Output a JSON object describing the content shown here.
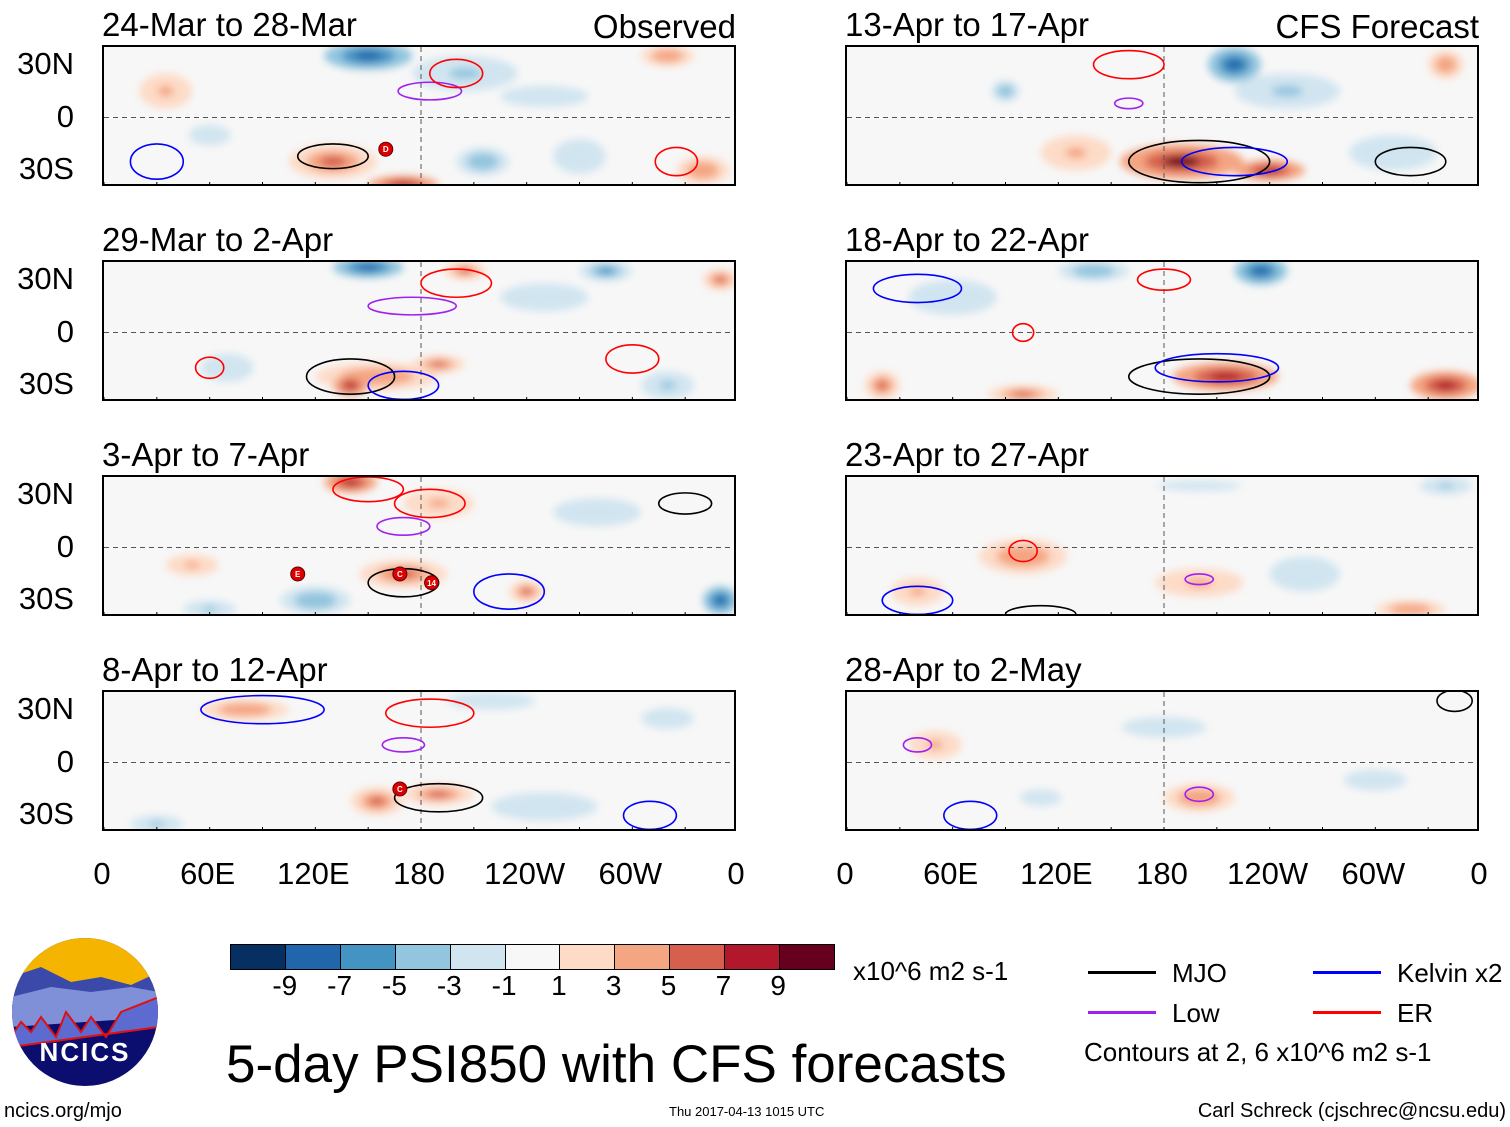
{
  "title": "5-day PSI850 with CFS forecasts",
  "units": "x10^6 m2 s-1",
  "contour_note": "Contours at 2, 6 x10^6 m2 s-1",
  "website": "ncics.org/mjo",
  "timestamp": "Thu 2017-04-13 1015 UTC",
  "author": "Carl Schreck (cjschrec@ncsu.edu)",
  "logo_text": "NCICS",
  "column_labels": {
    "observed": "Observed",
    "forecast": "CFS Forecast"
  },
  "y_ticks": [
    "30N",
    "0",
    "30S"
  ],
  "x_ticks": [
    "0",
    "60E",
    "120E",
    "180",
    "120W",
    "60W",
    "0"
  ],
  "colorbar": {
    "labels": [
      "-9",
      "-7",
      "-5",
      "-3",
      "-1",
      "1",
      "3",
      "5",
      "7",
      "9"
    ],
    "colors": [
      "#053061",
      "#2166ac",
      "#4393c3",
      "#92c5de",
      "#d1e5f0",
      "#f7f7f7",
      "#fddbc7",
      "#f4a582",
      "#d6604d",
      "#b2182b",
      "#67001f"
    ]
  },
  "legend": [
    {
      "label": "MJO",
      "color": "#000000"
    },
    {
      "label": "Kelvin x2",
      "color": "#0000ff"
    },
    {
      "label": "Low",
      "color": "#a020f0"
    },
    {
      "label": "ER",
      "color": "#ff0000"
    }
  ],
  "chart_data": {
    "type": "heatmap",
    "lon_range": [
      0,
      360
    ],
    "lat_range": [
      -40,
      40
    ],
    "panels": [
      {
        "title": "24-Mar to 28-Mar",
        "column": "observed",
        "features": [
          [
            150,
            35,
            -8,
            25,
            8
          ],
          [
            205,
            25,
            -4,
            30,
            10
          ],
          [
            130,
            -25,
            5,
            25,
            10
          ],
          [
            170,
            -38,
            7,
            20,
            5
          ],
          [
            215,
            -25,
            -5,
            15,
            8
          ],
          [
            60,
            -10,
            -2,
            20,
            10
          ],
          [
            320,
            35,
            4,
            15,
            6
          ],
          [
            270,
            -22,
            -3,
            15,
            10
          ],
          [
            340,
            -30,
            4,
            15,
            8
          ],
          [
            35,
            15,
            3,
            15,
            10
          ],
          [
            250,
            12,
            -3,
            25,
            6
          ]
        ],
        "contours": [
          [
            "MJO",
            130,
            -22,
            20,
            7
          ],
          [
            "Low",
            185,
            15,
            18,
            5
          ],
          [
            "ER",
            200,
            25,
            15,
            8
          ],
          [
            "Kelvin",
            30,
            -25,
            15,
            10
          ],
          [
            "ER",
            325,
            -25,
            12,
            8
          ]
        ],
        "storms": [
          [
            "D",
            160,
            -18
          ]
        ]
      },
      {
        "title": "29-Mar to 2-Apr",
        "column": "observed",
        "features": [
          [
            150,
            37,
            -8,
            20,
            6
          ],
          [
            205,
            35,
            6,
            12,
            5
          ],
          [
            285,
            35,
            -6,
            15,
            6
          ],
          [
            350,
            30,
            6,
            10,
            6
          ],
          [
            155,
            -25,
            4,
            35,
            8
          ],
          [
            140,
            -30,
            7,
            10,
            6
          ],
          [
            190,
            -18,
            5,
            15,
            5
          ],
          [
            320,
            -30,
            -4,
            15,
            8
          ],
          [
            70,
            -20,
            -3,
            15,
            8
          ],
          [
            250,
            20,
            -3,
            25,
            8
          ]
        ],
        "contours": [
          [
            "MJO",
            140,
            -25,
            25,
            10
          ],
          [
            "Low",
            175,
            15,
            25,
            5
          ],
          [
            "ER",
            200,
            28,
            20,
            8
          ],
          [
            "ER",
            60,
            -20,
            8,
            6
          ],
          [
            "Kelvin",
            170,
            -30,
            20,
            8
          ],
          [
            "ER",
            300,
            -15,
            15,
            8
          ]
        ],
        "storms": []
      },
      {
        "title": "3-Apr to 7-Apr",
        "column": "observed",
        "features": [
          [
            140,
            37,
            8,
            15,
            6
          ],
          [
            190,
            25,
            3,
            20,
            8
          ],
          [
            170,
            -15,
            5,
            25,
            8
          ],
          [
            240,
            -25,
            6,
            10,
            6
          ],
          [
            120,
            -30,
            -5,
            20,
            8
          ],
          [
            350,
            -30,
            -8,
            10,
            8
          ],
          [
            60,
            -35,
            -4,
            15,
            5
          ],
          [
            280,
            20,
            -3,
            25,
            8
          ],
          [
            50,
            -10,
            3,
            15,
            6
          ]
        ],
        "contours": [
          [
            "MJO",
            170,
            -20,
            20,
            8
          ],
          [
            "Low",
            170,
            12,
            15,
            5
          ],
          [
            "ER",
            185,
            25,
            20,
            8
          ],
          [
            "ER",
            150,
            33,
            20,
            7
          ],
          [
            "Kelvin",
            230,
            -25,
            20,
            10
          ],
          [
            "MJO",
            330,
            25,
            15,
            6
          ]
        ],
        "storms": [
          [
            "E",
            110,
            -15
          ],
          [
            "C",
            168,
            -15
          ],
          [
            "14",
            186,
            -20
          ]
        ]
      },
      {
        "title": "8-Apr to 12-Apr",
        "column": "observed",
        "features": [
          [
            80,
            30,
            4,
            25,
            6
          ],
          [
            190,
            -18,
            5,
            20,
            6
          ],
          [
            155,
            -22,
            6,
            15,
            8
          ],
          [
            30,
            -35,
            -4,
            15,
            5
          ],
          [
            250,
            -25,
            -3,
            30,
            8
          ],
          [
            320,
            25,
            -3,
            15,
            6
          ],
          [
            220,
            35,
            -3,
            25,
            5
          ]
        ],
        "contours": [
          [
            "MJO",
            190,
            -20,
            25,
            8
          ],
          [
            "Low",
            170,
            10,
            12,
            4
          ],
          [
            "ER",
            185,
            28,
            25,
            8
          ],
          [
            "Kelvin",
            90,
            30,
            35,
            8
          ],
          [
            "Kelvin",
            310,
            -30,
            15,
            8
          ]
        ],
        "storms": [
          [
            "C",
            168,
            -15
          ]
        ]
      },
      {
        "title": "13-Apr to 17-Apr",
        "column": "forecast",
        "features": [
          [
            220,
            30,
            -8,
            15,
            10
          ],
          [
            250,
            15,
            -4,
            30,
            10
          ],
          [
            190,
            -25,
            9,
            35,
            10
          ],
          [
            240,
            -30,
            7,
            20,
            6
          ],
          [
            340,
            30,
            4,
            10,
            8
          ],
          [
            90,
            15,
            -5,
            8,
            6
          ],
          [
            130,
            -20,
            3,
            20,
            10
          ],
          [
            310,
            -20,
            -3,
            25,
            10
          ]
        ],
        "contours": [
          [
            "MJO",
            200,
            -25,
            40,
            12
          ],
          [
            "Kelvin",
            220,
            -25,
            30,
            8
          ],
          [
            "MJO",
            320,
            -25,
            20,
            8
          ],
          [
            "Low",
            160,
            8,
            8,
            3
          ],
          [
            "ER",
            160,
            30,
            20,
            8
          ]
        ],
        "storms": []
      },
      {
        "title": "18-Apr to 22-Apr",
        "column": "forecast",
        "features": [
          [
            235,
            35,
            -8,
            15,
            8
          ],
          [
            140,
            35,
            -5,
            20,
            6
          ],
          [
            215,
            -25,
            8,
            30,
            8
          ],
          [
            340,
            -30,
            8,
            20,
            8
          ],
          [
            100,
            -35,
            5,
            20,
            5
          ],
          [
            20,
            -30,
            5,
            10,
            8
          ],
          [
            60,
            20,
            -3,
            25,
            10
          ]
        ],
        "contours": [
          [
            "MJO",
            200,
            -25,
            40,
            10
          ],
          [
            "Kelvin",
            210,
            -20,
            35,
            8
          ],
          [
            "Kelvin",
            40,
            25,
            25,
            8
          ],
          [
            "ER",
            100,
            0,
            6,
            5
          ],
          [
            "ER",
            180,
            30,
            15,
            6
          ]
        ],
        "storms": []
      },
      {
        "title": "23-Apr to 27-Apr",
        "column": "forecast",
        "features": [
          [
            100,
            -5,
            4,
            25,
            10
          ],
          [
            200,
            -20,
            3,
            25,
            8
          ],
          [
            320,
            -35,
            4,
            20,
            5
          ],
          [
            200,
            35,
            -2,
            40,
            5
          ],
          [
            340,
            35,
            -4,
            15,
            5
          ],
          [
            260,
            -15,
            -3,
            20,
            10
          ],
          [
            40,
            -25,
            3,
            15,
            8
          ]
        ],
        "contours": [
          [
            "ER",
            100,
            -2,
            8,
            6
          ],
          [
            "Low",
            200,
            -18,
            8,
            3
          ],
          [
            "MJO",
            110,
            -38,
            20,
            5
          ],
          [
            "Kelvin",
            40,
            -30,
            20,
            8
          ]
        ],
        "storms": []
      },
      {
        "title": "28-Apr to 2-May",
        "column": "forecast",
        "features": [
          [
            200,
            -20,
            4,
            20,
            8
          ],
          [
            50,
            10,
            3,
            15,
            8
          ],
          [
            180,
            20,
            -2,
            40,
            10
          ],
          [
            300,
            -10,
            -2,
            30,
            10
          ],
          [
            110,
            -20,
            -2,
            20,
            8
          ]
        ],
        "contours": [
          [
            "Low",
            200,
            -18,
            8,
            4
          ],
          [
            "Low",
            40,
            10,
            8,
            4
          ],
          [
            "Kelvin",
            70,
            -30,
            15,
            8
          ],
          [
            "MJO",
            345,
            35,
            10,
            6
          ]
        ],
        "storms": []
      }
    ]
  }
}
